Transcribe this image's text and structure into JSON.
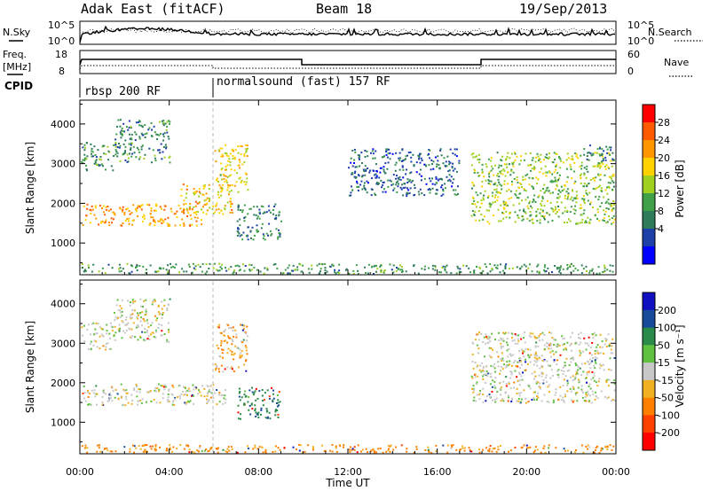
{
  "header": {
    "title": "Adak East (fitACF)",
    "beam": "Beam 18",
    "date": "19/Sep/2013"
  },
  "summary_panels": {
    "nsky_label": "N.Sky",
    "nsearch_label": "N.Search",
    "counts_ticks": [
      "10^5",
      "10^0"
    ],
    "freq_label_line1": "Freq.",
    "freq_label_line2": "[MHz]",
    "freq_ticks": [
      "18",
      "8"
    ],
    "nave_label": "Nave",
    "nave_ticks": [
      "60",
      "0"
    ],
    "cpid_label": "CPID",
    "cpid_segments": [
      "rbsp 200 RF",
      "normalsound (fast) 157 RF"
    ]
  },
  "power_colorbar": {
    "label": "Power [dB]",
    "ticks": [
      "28",
      "24",
      "20",
      "16",
      "12",
      "8",
      "4"
    ],
    "colors": [
      "#ff0000",
      "#ff5a00",
      "#ff9600",
      "#ffd200",
      "#a0d020",
      "#3fa048",
      "#2f7c5a",
      "#1d3fa8",
      "#0000ff"
    ]
  },
  "velocity_colorbar": {
    "label": "Velocity [m s⁻¹]",
    "ticks": [
      "200",
      "100",
      "50",
      "15",
      "-15",
      "-50",
      "-100",
      "-200"
    ],
    "colors": [
      "#1010c0",
      "#1a4a9a",
      "#2a8a4a",
      "#60c040",
      "#c8c8c8",
      "#f0b020",
      "#ff8000",
      "#ff4000",
      "#ff0000"
    ]
  },
  "x_axis": {
    "label": "Time UT",
    "ticks": [
      "00:00",
      "04:00",
      "08:00",
      "12:00",
      "16:00",
      "20:00",
      "00:00"
    ]
  },
  "chart_data": [
    {
      "type": "heatmap",
      "title": "Power",
      "ylabel": "Slant Range [km]",
      "ylim": [
        200,
        4600
      ],
      "y_ticks": [
        1000,
        2000,
        3000,
        4000
      ],
      "xlabel": "Time UT",
      "xlim_hours": [
        0,
        24
      ],
      "colorbar": "Power [dB]",
      "scatter_regions": [
        {
          "t0": 0.0,
          "t1": 1.5,
          "r0": 2850,
          "r1": 3550,
          "p": 10
        },
        {
          "t0": 1.5,
          "t1": 4.0,
          "r0": 3050,
          "r1": 4150,
          "p": 9
        },
        {
          "t0": 0.0,
          "t1": 5.5,
          "r0": 1450,
          "r1": 2000,
          "p": 22
        },
        {
          "t0": 4.5,
          "t1": 6.8,
          "r0": 1750,
          "r1": 2500,
          "p": 20
        },
        {
          "t0": 6.0,
          "t1": 7.5,
          "r0": 2300,
          "r1": 3500,
          "p": 18
        },
        {
          "t0": 7.0,
          "t1": 9.0,
          "r0": 1100,
          "r1": 2000,
          "p": 8
        },
        {
          "t0": 12.0,
          "t1": 17.0,
          "r0": 2200,
          "r1": 3400,
          "p": 6
        },
        {
          "t0": 17.5,
          "t1": 24.0,
          "r0": 1500,
          "r1": 3300,
          "p": 14
        },
        {
          "t0": 22.5,
          "t1": 24.0,
          "r0": 3100,
          "r1": 3500,
          "p": 8
        },
        {
          "t0": 0.0,
          "t1": 24.0,
          "r0": 200,
          "r1": 500,
          "p": 10
        }
      ]
    },
    {
      "type": "heatmap",
      "title": "Velocity",
      "ylabel": "Slant Range [km]",
      "ylim": [
        200,
        4600
      ],
      "y_ticks": [
        1000,
        2000,
        3000,
        4000
      ],
      "xlabel": "Time UT",
      "xlim_hours": [
        0,
        24
      ],
      "colorbar": "Velocity [m s⁻¹]",
      "scatter_regions": [
        {
          "t0": 0.0,
          "t1": 1.5,
          "r0": 2850,
          "r1": 3550,
          "v": 0
        },
        {
          "t0": 1.5,
          "t1": 4.0,
          "r0": 3050,
          "r1": 4150,
          "v": 0
        },
        {
          "t0": 0.0,
          "t1": 6.5,
          "r0": 1450,
          "r1": 2000,
          "v": 0
        },
        {
          "t0": 6.0,
          "t1": 7.5,
          "r0": 2300,
          "r1": 3500,
          "v": -20
        },
        {
          "t0": 7.0,
          "t1": 9.0,
          "r0": 1100,
          "r1": 1900,
          "v": 60
        },
        {
          "t0": 17.5,
          "t1": 24.0,
          "r0": 1500,
          "r1": 3300,
          "v": 0
        },
        {
          "t0": 0.0,
          "t1": 24.0,
          "r0": 200,
          "r1": 450,
          "v": -40
        }
      ]
    }
  ]
}
